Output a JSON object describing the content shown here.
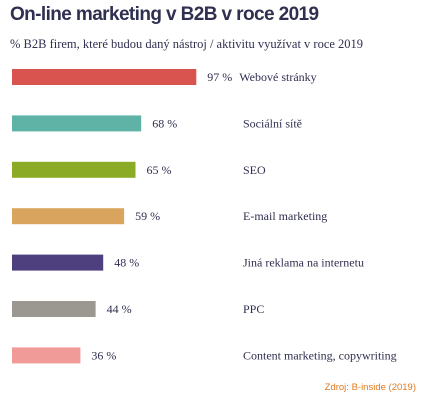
{
  "title": "On-line marketing v B2B v roce 2019",
  "subtitle": "% B2B firem, které budou daný nástroj / aktivitu využívat v roce 2019",
  "source": "Zdroj: B-inside (2019)",
  "chart_data": {
    "type": "bar",
    "orientation": "horizontal",
    "title": "On-line marketing v B2B v roce 2019",
    "subtitle": "% B2B firem, které budou daný nástroj / aktivitu využívat v roce 2019",
    "categories": [
      "Webové stránky",
      "Sociální sítě",
      "SEO",
      "E-mail marketing",
      "Jiná reklama na internetu",
      "PPC",
      "Content marketing, copywriting"
    ],
    "values": [
      97,
      68,
      65,
      59,
      48,
      44,
      36
    ],
    "value_labels": [
      "97 %",
      "68 %",
      "65 %",
      "59 %",
      "48 %",
      "44 %",
      "36 %"
    ],
    "colors": [
      "#d9534f",
      "#5fb3a6",
      "#8bab26",
      "#d9a45e",
      "#4e3f7e",
      "#9a9890",
      "#f09b98"
    ],
    "xlim": [
      0,
      100
    ],
    "grid": false,
    "legend": "none"
  }
}
